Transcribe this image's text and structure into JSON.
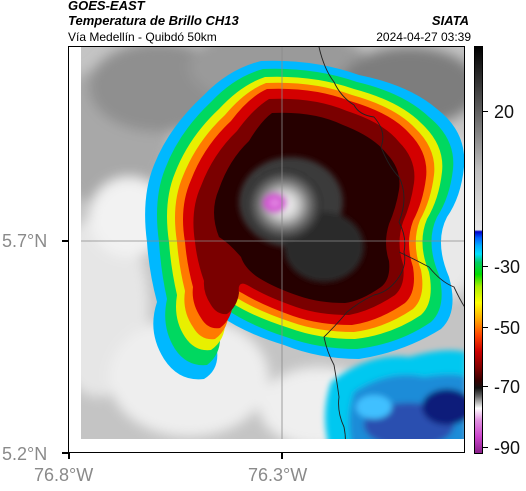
{
  "header": {
    "source": "GOES-EAST",
    "product": "Temperatura de Brillo CH13",
    "region": "Vía Medellín - Quibdó 50km",
    "brand": "SIATA",
    "timestamp": "2024-04-27 03:39"
  },
  "axes": {
    "lat_labels": [
      "5.7°N",
      "5.2°N"
    ],
    "lon_labels": [
      "76.8°W",
      "76.3°W"
    ]
  },
  "colorbar": {
    "labels": [
      "20",
      "-30",
      "-50",
      "-70",
      "-90"
    ],
    "colors": {
      "warm_gray_top": "#000000",
      "warm_gray_bottom": "#e8e8e8",
      "blue": "#0000cc",
      "cyan": "#00d0ff",
      "green": "#00cc00",
      "yellow": "#ffff00",
      "red": "#cc0000",
      "black": "#1a0000",
      "magenta": "#cc44cc"
    }
  }
}
